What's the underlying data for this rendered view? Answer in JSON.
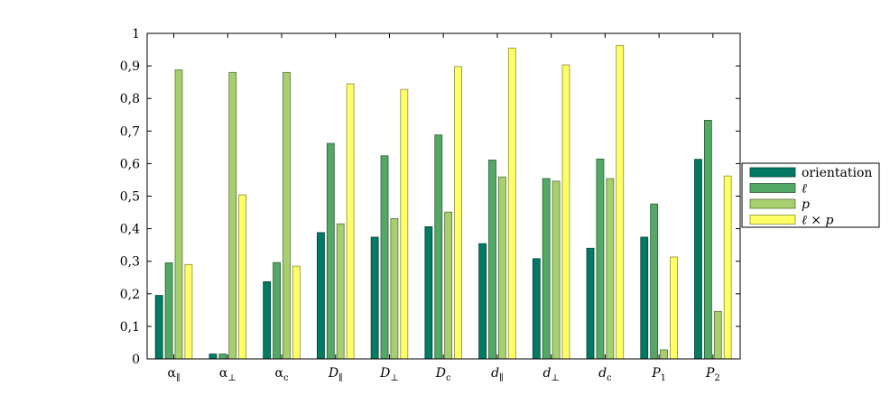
{
  "chart_data": {
    "type": "bar",
    "title": "",
    "xlabel": "",
    "ylabel": "",
    "ylim": [
      0,
      1
    ],
    "yticks": [
      {
        "value": 0,
        "label": "0"
      },
      {
        "value": 0.1,
        "label": "0,1"
      },
      {
        "value": 0.2,
        "label": "0,2"
      },
      {
        "value": 0.3,
        "label": "0,3"
      },
      {
        "value": 0.4,
        "label": "0,4"
      },
      {
        "value": 0.5,
        "label": "0,5"
      },
      {
        "value": 0.6,
        "label": "0,6"
      },
      {
        "value": 0.7,
        "label": "0,7"
      },
      {
        "value": 0.8,
        "label": "0,8"
      },
      {
        "value": 0.9,
        "label": "0,9"
      },
      {
        "value": 1,
        "label": "1"
      }
    ],
    "categories": [
      {
        "base": "α",
        "sub": "∥",
        "italic": false
      },
      {
        "base": "α",
        "sub": "⊥",
        "italic": false
      },
      {
        "base": "α",
        "sub": "c",
        "italic": false
      },
      {
        "base": "D",
        "sub": "∥",
        "italic": true
      },
      {
        "base": "D",
        "sub": "⊥",
        "italic": true
      },
      {
        "base": "D",
        "sub": "c",
        "italic": true
      },
      {
        "base": "d",
        "sub": "∥",
        "italic": true
      },
      {
        "base": "d",
        "sub": "⊥",
        "italic": true
      },
      {
        "base": "d",
        "sub": "c",
        "italic": true
      },
      {
        "base": "P",
        "sub": "1",
        "italic": true
      },
      {
        "base": "P",
        "sub": "2",
        "italic": true
      }
    ],
    "series": [
      {
        "name": "orientation",
        "color": "#007a63",
        "values": [
          0.195,
          0.015,
          0.237,
          0.388,
          0.374,
          0.406,
          0.354,
          0.308,
          0.34,
          0.374,
          0.613
        ]
      },
      {
        "name": "ℓ",
        "color": "#52a864",
        "values": [
          0.295,
          0.015,
          0.296,
          0.662,
          0.624,
          0.688,
          0.611,
          0.554,
          0.614,
          0.476,
          0.733
        ]
      },
      {
        "name": "p",
        "color": "#a6d06e",
        "values": [
          0.888,
          0.88,
          0.88,
          0.415,
          0.431,
          0.451,
          0.559,
          0.546,
          0.554,
          0.028,
          0.146
        ]
      },
      {
        "name": "ℓ × p",
        "color": "#ffff66",
        "values": [
          0.29,
          0.504,
          0.285,
          0.845,
          0.828,
          0.898,
          0.955,
          0.903,
          0.963,
          0.313,
          0.562
        ]
      }
    ],
    "grid": false,
    "legend_position": "right"
  }
}
